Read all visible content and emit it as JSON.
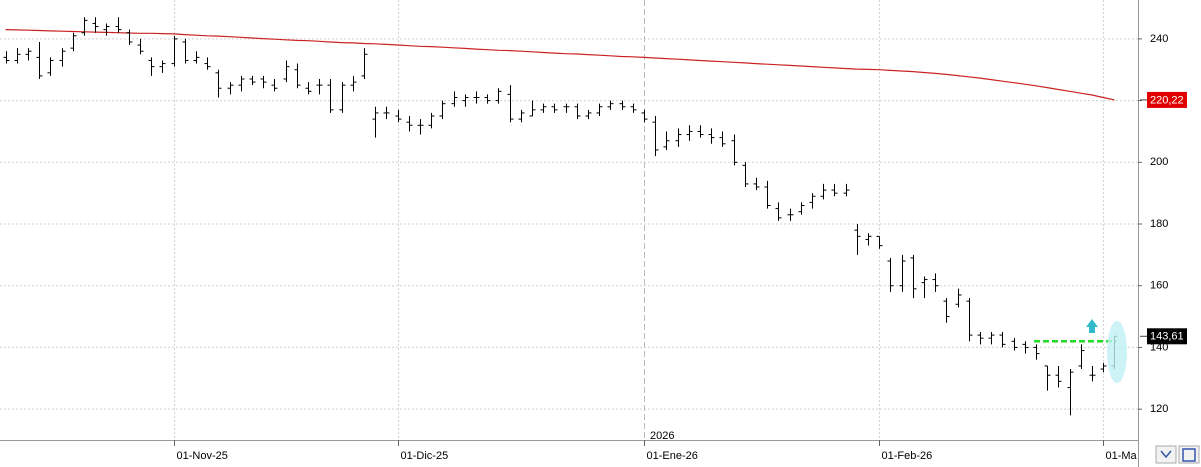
{
  "chart_data": {
    "type": "ohlc",
    "categories": [
      null,
      null,
      null,
      null,
      null,
      null,
      null,
      null,
      null,
      null,
      null,
      null,
      null,
      null,
      null,
      "01-Nov-25",
      null,
      null,
      null,
      null,
      null,
      null,
      null,
      null,
      null,
      null,
      null,
      null,
      null,
      null,
      null,
      null,
      null,
      null,
      null,
      "01-Dic-25",
      null,
      null,
      null,
      null,
      null,
      null,
      null,
      null,
      null,
      null,
      null,
      null,
      null,
      null,
      null,
      null,
      null,
      null,
      null,
      null,
      null,
      "01-Ene-26",
      null,
      null,
      null,
      null,
      null,
      null,
      null,
      null,
      null,
      null,
      null,
      null,
      null,
      null,
      null,
      null,
      null,
      null,
      null,
      null,
      "01-Feb-26",
      null,
      null,
      null,
      null,
      null,
      null,
      null,
      null,
      null,
      null,
      null,
      null,
      null,
      null,
      null,
      null,
      null,
      null,
      null,
      "01-Ma",
      null
    ],
    "open": [
      234,
      233,
      235,
      234,
      229,
      233,
      237,
      242,
      245,
      243,
      244,
      242,
      238,
      233,
      231,
      232,
      239,
      233,
      232,
      229,
      224,
      225,
      227,
      227,
      225,
      227,
      230,
      224,
      225,
      225,
      217,
      225,
      228,
      214,
      216,
      215,
      213,
      212,
      212,
      215,
      219,
      220,
      221,
      221,
      220,
      222,
      214,
      215,
      217,
      218,
      218,
      218,
      215,
      216,
      218,
      219,
      218,
      216,
      213,
      205,
      207,
      209,
      210,
      209,
      208,
      207,
      199,
      193,
      192,
      185,
      183,
      184,
      187,
      189,
      191,
      190,
      178,
      175,
      176,
      168,
      160,
      169,
      161,
      162,
      155,
      154,
      155,
      144,
      143,
      144,
      142,
      141,
      140,
      134,
      131,
      127,
      134,
      131,
      133,
      134
    ],
    "high": [
      236,
      237,
      237,
      239,
      234,
      237,
      242,
      247,
      247,
      245,
      247,
      243,
      240,
      234,
      233,
      241,
      240,
      236,
      234,
      230,
      226,
      228,
      228,
      228,
      227,
      233,
      232,
      226,
      227,
      227,
      226,
      228,
      237,
      218,
      218,
      217,
      215,
      214,
      216,
      220,
      223,
      222,
      223,
      222,
      224,
      225,
      217,
      220,
      219,
      219,
      219,
      219,
      217,
      219,
      220,
      220,
      219,
      217,
      215,
      210,
      211,
      212,
      212,
      211,
      210,
      209,
      200,
      195,
      194,
      187,
      185,
      187,
      190,
      193,
      193,
      193,
      180,
      177,
      176,
      169,
      170,
      170,
      163,
      164,
      156,
      159,
      156,
      145,
      145,
      145,
      143,
      142,
      141,
      134,
      134,
      133,
      141,
      134,
      135,
      143.61
    ],
    "low": [
      232,
      232,
      233,
      227,
      228,
      231,
      236,
      241,
      242,
      241,
      242,
      238,
      235,
      228,
      229,
      231,
      232,
      232,
      230,
      221,
      222,
      223,
      225,
      224,
      223,
      226,
      224,
      222,
      222,
      216,
      216,
      223,
      227,
      208,
      214,
      213,
      210,
      209,
      211,
      214,
      218,
      218,
      219,
      219,
      219,
      213,
      213,
      215,
      216,
      216,
      216,
      214,
      214,
      215,
      217,
      217,
      216,
      213,
      202,
      204,
      205,
      207,
      208,
      206,
      205,
      199,
      192,
      191,
      185,
      181,
      181,
      183,
      185,
      188,
      189,
      189,
      170,
      173,
      172,
      158,
      158,
      156,
      156,
      158,
      148,
      153,
      142,
      141,
      141,
      140,
      139,
      138,
      136,
      126,
      127,
      118,
      133,
      129,
      132,
      133
    ],
    "close": [
      233,
      235,
      236,
      228,
      233,
      236,
      241,
      246,
      244,
      244,
      243,
      239,
      236,
      231,
      232,
      240,
      233,
      234,
      231,
      224,
      225,
      227,
      226,
      226,
      224,
      231,
      225,
      223,
      225,
      217,
      225,
      226,
      235,
      216,
      216,
      214,
      212,
      212,
      215,
      219,
      221,
      221,
      221,
      220,
      223,
      214,
      216,
      217,
      218,
      217,
      218,
      215,
      216,
      218,
      219,
      218,
      217,
      214,
      204,
      207,
      209,
      210,
      209,
      208,
      206,
      200,
      193,
      192,
      186,
      182,
      183,
      186,
      189,
      191,
      190,
      191,
      176,
      176,
      173,
      160,
      168,
      159,
      162,
      160,
      150,
      157,
      144,
      143,
      144,
      141,
      140,
      140,
      138,
      131,
      129,
      132,
      139,
      131,
      134,
      143.61
    ],
    "color": "#000000",
    "moving_average": {
      "color": "#cc2222",
      "values": [
        243.0,
        242.9,
        242.8,
        242.7,
        242.6,
        242.5,
        242.4,
        242.3,
        242.2,
        242.1,
        242.0,
        241.9,
        241.8,
        241.8,
        241.7,
        241.6,
        241.4,
        241.2,
        241.0,
        240.9,
        240.7,
        240.5,
        240.3,
        240.1,
        239.9,
        239.7,
        239.5,
        239.4,
        239.2,
        239.0,
        238.8,
        238.7,
        238.5,
        238.4,
        238.2,
        238.0,
        237.8,
        237.6,
        237.5,
        237.3,
        237.1,
        236.9,
        236.7,
        236.5,
        236.3,
        236.2,
        236.0,
        235.8,
        235.6,
        235.4,
        235.2,
        235.1,
        234.9,
        234.7,
        234.5,
        234.3,
        234.2,
        234.0,
        233.8,
        233.6,
        233.4,
        233.2,
        233.0,
        232.8,
        232.6,
        232.4,
        232.2,
        232.0,
        231.8,
        231.6,
        231.4,
        231.2,
        231.0,
        230.8,
        230.6,
        230.4,
        230.2,
        230.1,
        230.0,
        229.8,
        229.6,
        229.4,
        229.1,
        228.8,
        228.5,
        228.1,
        227.7,
        227.3,
        226.8,
        226.3,
        225.8,
        225.3,
        224.8,
        224.2,
        223.6,
        223.0,
        222.4,
        221.8,
        221.0,
        220.22
      ]
    },
    "price_tags": [
      {
        "value": 220.22,
        "label": "220,22",
        "color": "#e00000"
      },
      {
        "value": 143.61,
        "label": "143,61",
        "color": "#000000"
      }
    ],
    "level_line": {
      "value": 142,
      "color": "#22dd22"
    },
    "year_label": "2026",
    "ylim": [
      110,
      252.6
    ],
    "yticks": [
      120,
      140,
      160,
      180,
      200,
      220,
      240
    ],
    "grid": true
  }
}
